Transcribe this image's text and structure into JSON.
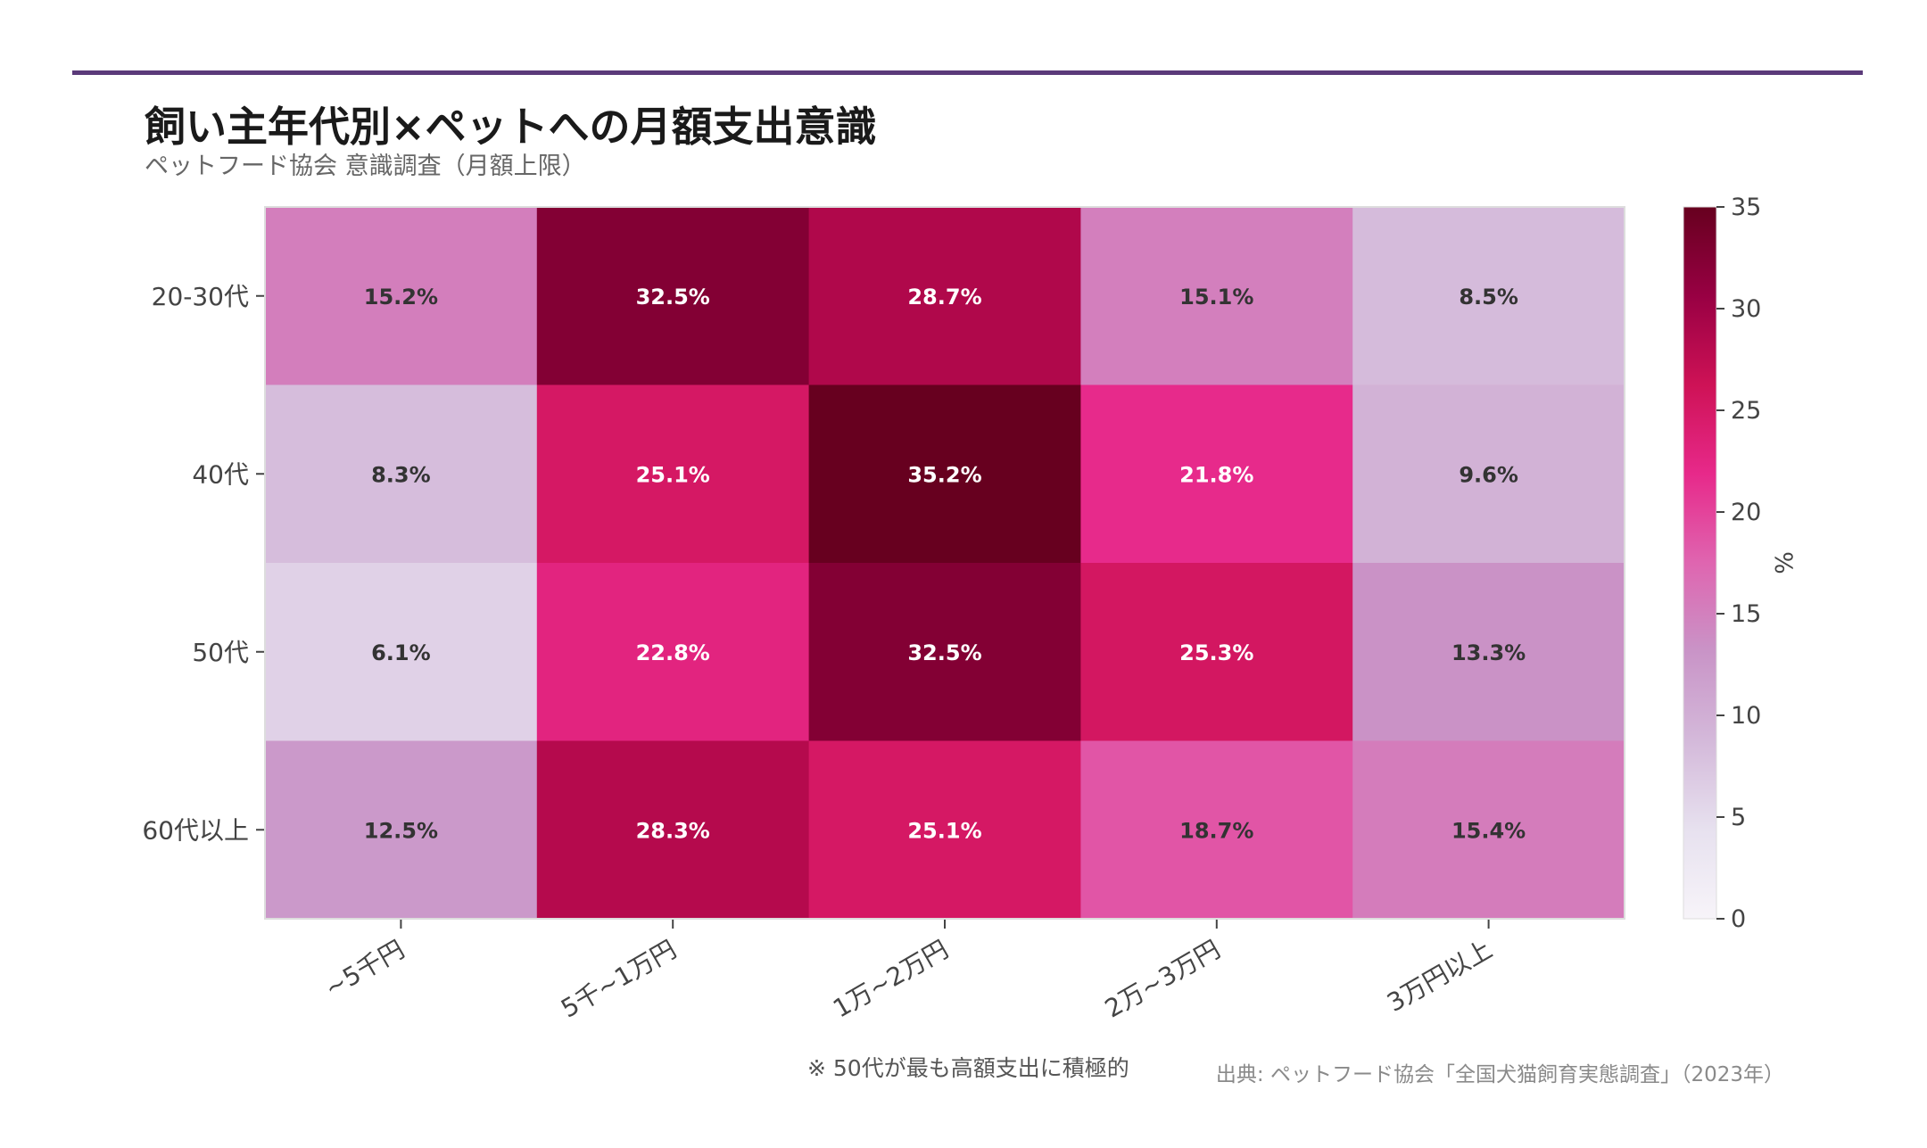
{
  "header": {
    "title": "飼い主年代別×ペットへの月額支出意識",
    "subtitle": "ペットフード協会 意識調査（月額上限）"
  },
  "colors": {
    "accent": "#5b3a7a",
    "text_dark": "#333333",
    "text_light": "#ffffff"
  },
  "chart_data": {
    "type": "heatmap",
    "rows": [
      "20-30代",
      "40代",
      "50代",
      "60代以上"
    ],
    "columns": [
      "~5千円",
      "5千~1万円",
      "1万~2万円",
      "2万~3万円",
      "3万円以上"
    ],
    "values": [
      [
        15.2,
        32.5,
        28.7,
        15.1,
        8.5
      ],
      [
        8.3,
        25.1,
        35.2,
        21.8,
        9.6
      ],
      [
        6.1,
        22.8,
        32.5,
        25.3,
        13.3
      ],
      [
        12.5,
        28.3,
        25.1,
        18.7,
        15.4
      ]
    ],
    "cell_labels": [
      [
        "15.2%",
        "32.5%",
        "28.7%",
        "15.1%",
        "8.5%"
      ],
      [
        "8.3%",
        "25.1%",
        "35.2%",
        "21.8%",
        "9.6%"
      ],
      [
        "6.1%",
        "22.8%",
        "32.5%",
        "25.3%",
        "13.3%"
      ],
      [
        "12.5%",
        "28.3%",
        "25.1%",
        "18.7%",
        "15.4%"
      ]
    ],
    "colorbar": {
      "label": "%",
      "min": 0,
      "max": 35,
      "ticks": [
        0,
        5,
        10,
        15,
        20,
        25,
        30,
        35
      ],
      "tick_labels": [
        "0",
        "5",
        "10",
        "15",
        "20",
        "25",
        "30",
        "35"
      ]
    },
    "colormap": [
      "#f7f4f9",
      "#e7e1ef",
      "#d4b9da",
      "#c994c7",
      "#df65b0",
      "#e7298a",
      "#ce1256",
      "#980043",
      "#67001f"
    ]
  },
  "footnote": "※ 50代が最も高額支出に積極的",
  "source": "出典: ペットフード協会「全国犬猫飼育実態調査」（2023年）"
}
